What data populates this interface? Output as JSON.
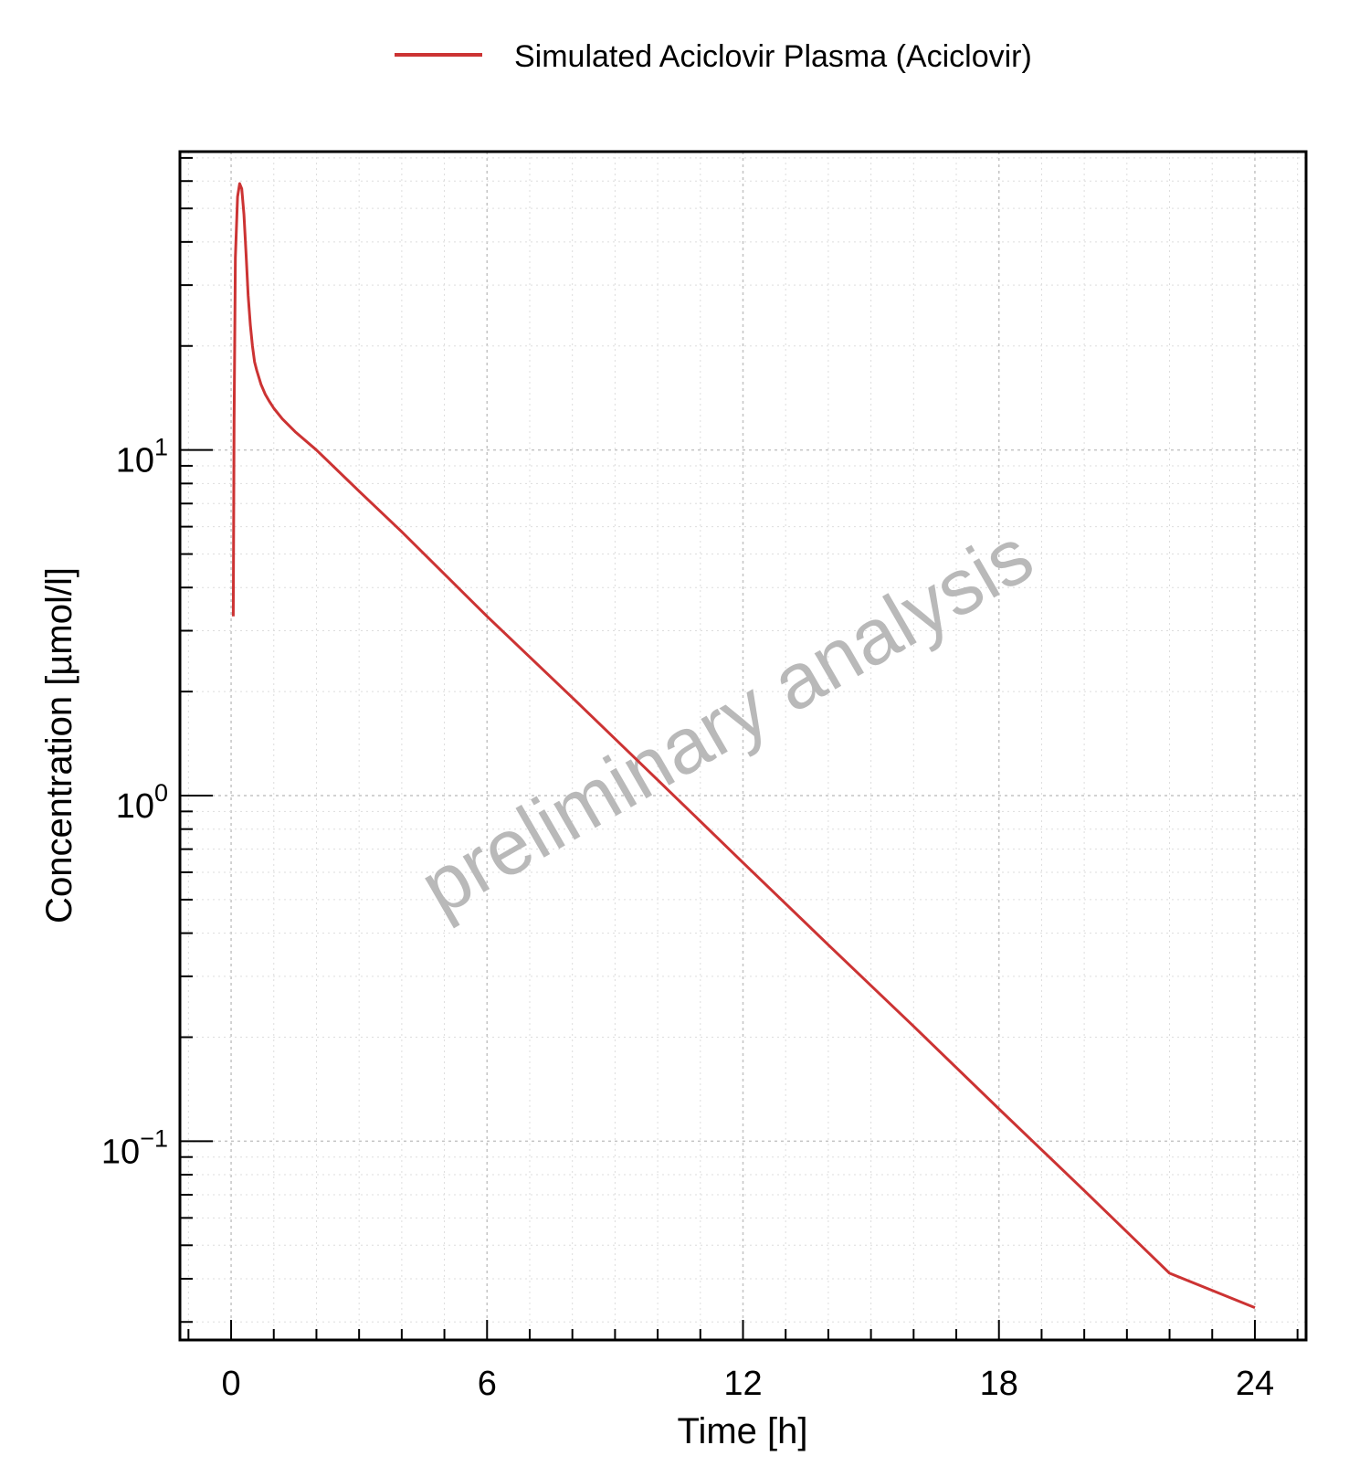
{
  "chart_data": {
    "type": "line",
    "legend": {
      "position": "top-center"
    },
    "xlabel": "Time [h]",
    "ylabel": "Concentration [µmol/l]",
    "x_ticks": [
      0,
      6,
      12,
      18,
      24
    ],
    "y_ticks": [
      {
        "value": 10,
        "base": "10",
        "exp": "1"
      },
      {
        "value": 1,
        "base": "10",
        "exp": "0"
      },
      {
        "value": 0.1,
        "base": "10",
        "exp": "−1"
      }
    ],
    "xlim": [
      -1.2,
      25.2
    ],
    "ylim": [
      0.0266,
      73
    ],
    "y_scale": "log",
    "grid": true,
    "watermark": "preliminary analysis",
    "series": [
      {
        "name": "Simulated Aciclovir Plasma (Aciclovir)",
        "color": "#cc3333",
        "x": [
          0.05,
          0.07,
          0.1,
          0.15,
          0.2,
          0.25,
          0.3,
          0.35,
          0.4,
          0.45,
          0.5,
          0.55,
          0.6,
          0.7,
          0.8,
          0.9,
          1.0,
          1.2,
          1.5,
          2,
          3,
          4,
          6,
          8,
          10,
          12,
          14,
          16,
          18,
          20,
          22,
          24
        ],
        "y": [
          3.3,
          12,
          36,
          54,
          59,
          57,
          48,
          37,
          28,
          23,
          20,
          18,
          17,
          15.5,
          14.5,
          13.8,
          13.2,
          12.3,
          11.3,
          10.0,
          7.6,
          5.8,
          3.3,
          1.92,
          1.11,
          0.64,
          0.37,
          0.215,
          0.124,
          0.072,
          0.0415,
          0.033
        ]
      }
    ]
  }
}
